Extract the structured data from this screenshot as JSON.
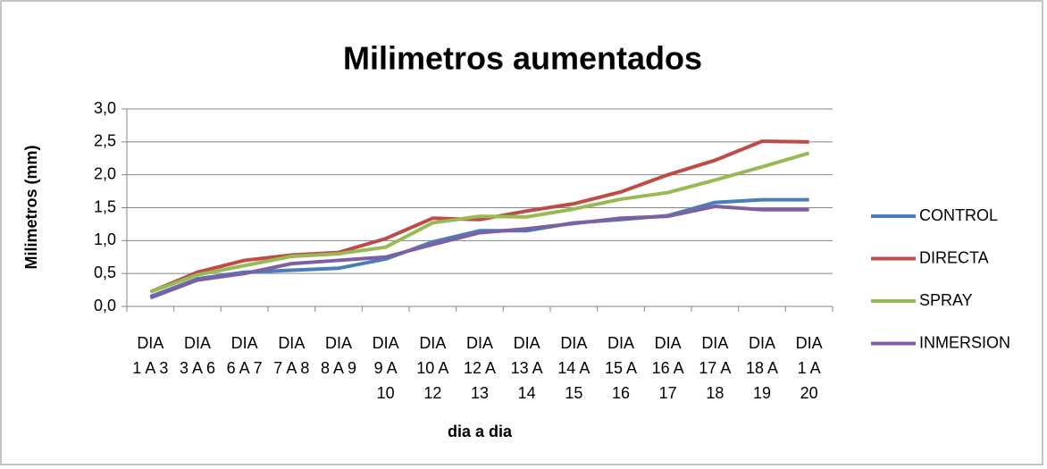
{
  "chart_data": {
    "type": "line",
    "title": "Milimetros aumentados",
    "x_label": "dia a dia",
    "y_label": "Milimetros (mm)",
    "categories": [
      "DIA 1 A 3",
      "DIA 3 A 6",
      "DIA 6 A 7",
      "DIA 7 A 8",
      "DIA 8 A 9",
      "DIA 9 A 10",
      "DIA 10 A 12",
      "DIA 12 A 13",
      "DIA 13 A 14",
      "DIA 14 A 15",
      "DIA 15 A 16",
      "DIA 16 A 17",
      "DIA 17 A 18",
      "DIA 18 A 19",
      "DIA 1 A 20"
    ],
    "series": [
      {
        "name": "CONTROL",
        "color": "#4a7ebb",
        "values": [
          0.15,
          0.42,
          0.52,
          0.55,
          0.58,
          0.72,
          0.98,
          1.15,
          1.15,
          1.27,
          1.32,
          1.38,
          1.58,
          1.62,
          1.62
        ]
      },
      {
        "name": "DIRECTA",
        "color": "#be4b48",
        "values": [
          0.22,
          0.52,
          0.7,
          0.78,
          0.82,
          1.03,
          1.34,
          1.32,
          1.45,
          1.56,
          1.74,
          2.0,
          2.22,
          2.51,
          2.5
        ]
      },
      {
        "name": "SPRAY",
        "color": "#98b954",
        "values": [
          0.22,
          0.48,
          0.62,
          0.76,
          0.8,
          0.9,
          1.27,
          1.37,
          1.36,
          1.48,
          1.63,
          1.73,
          1.92,
          2.12,
          2.33
        ]
      },
      {
        "name": "INMERSION",
        "color": "#7d60a0",
        "values": [
          0.13,
          0.4,
          0.5,
          0.65,
          0.7,
          0.75,
          0.94,
          1.12,
          1.18,
          1.26,
          1.34,
          1.37,
          1.52,
          1.47,
          1.47
        ]
      }
    ],
    "ylim": [
      0,
      3
    ],
    "yticks": [
      {
        "value": 0,
        "label": "0,0"
      },
      {
        "value": 0.5,
        "label": "0,5"
      },
      {
        "value": 1,
        "label": "1,0"
      },
      {
        "value": 1.5,
        "label": "1,5"
      },
      {
        "value": 2,
        "label": "2,0"
      },
      {
        "value": 2.5,
        "label": "2,5"
      },
      {
        "value": 3,
        "label": "3,0"
      }
    ],
    "grid": true,
    "legend": "right"
  }
}
